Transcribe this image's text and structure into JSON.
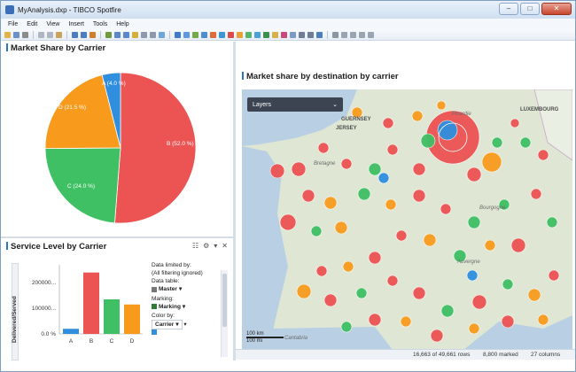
{
  "window": {
    "title": "MyAnalysis.dxp - TIBCO Spotfire",
    "controls": [
      "–",
      "□",
      "✕"
    ]
  },
  "menu": [
    "File",
    "Edit",
    "View",
    "Insert",
    "Tools",
    "Help"
  ],
  "market_share": {
    "title": "Market Share by Carrier",
    "slices": [
      {
        "label": "B (52.0 %)",
        "value": 52.0,
        "color": "#ec5353"
      },
      {
        "label": "C (24.0 %)",
        "value": 24.0,
        "color": "#3fc064"
      },
      {
        "label": "D (21.5 %)",
        "value": 21.5,
        "color": "#f89b1c"
      },
      {
        "label": "A (4.0 %)",
        "value": 4.0,
        "color": "#2f8fde"
      }
    ]
  },
  "service_level": {
    "title": "Service Level by Carrier",
    "ylabel": "Delivered/Served",
    "ytick_labels": [
      "200000...",
      "100000...",
      "0.0 %"
    ],
    "categories": [
      "A",
      "B",
      "C",
      "D"
    ],
    "colors": [
      "#2f8fde",
      "#ec5353",
      "#3fc064",
      "#f89b1c"
    ]
  },
  "legend": {
    "data_limited_by": "Data limited by:",
    "filtering": "(All filtering ignored)",
    "data_table_label": "Data table:",
    "data_table_value": "Master",
    "marking_label": "Marking:",
    "marking_value": "Marking",
    "color_by_label": "Color by:",
    "color_by_value": "Carrier"
  },
  "chart_data": {
    "type": "bar",
    "categories": [
      "A",
      "B",
      "C",
      "D"
    ],
    "values": [
      20000,
      240000,
      135000,
      115000
    ],
    "ylabel": "Delivered/Served",
    "ylim": [
      0,
      270000
    ]
  },
  "map": {
    "title": "Market share by destination by carrier",
    "layers_button": "Layers",
    "labels": [
      {
        "text": "GUERNSEY",
        "style": "bold"
      },
      {
        "text": "JERSEY",
        "style": "bold"
      },
      {
        "text": "Picardie",
        "style": "region"
      },
      {
        "text": "LUXEMBOURG",
        "style": "bold"
      },
      {
        "text": "Bretagne",
        "style": "region"
      },
      {
        "text": "Bourgogne",
        "style": "region"
      },
      {
        "text": "Auvergne",
        "style": "region"
      },
      {
        "text": "Cantabria",
        "style": "region"
      }
    ],
    "scale_km": "100 km",
    "scale_mi": "100 mi"
  },
  "status": {
    "rows": "16,663 of 49,661 rows",
    "marked": "8,800 marked",
    "columns": "27 columns"
  }
}
